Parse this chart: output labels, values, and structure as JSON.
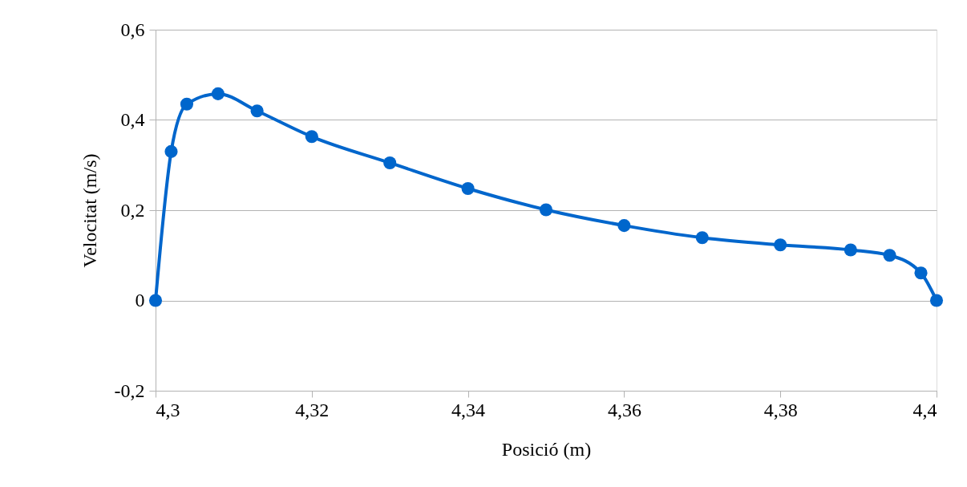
{
  "chart_data": {
    "type": "line",
    "xlabel": "Posició (m)",
    "ylabel": "Velocitat (m/s)",
    "x": [
      4.3,
      4.302,
      4.304,
      4.308,
      4.313,
      4.32,
      4.33,
      4.34,
      4.35,
      4.36,
      4.37,
      4.38,
      4.389,
      4.394,
      4.398,
      4.4
    ],
    "series": [
      {
        "color": "#0066cc",
        "values": [
          0,
          0.33,
          0.435,
          0.458,
          0.42,
          0.363,
          0.305,
          0.248,
          0.201,
          0.166,
          0.139,
          0.123,
          0.112,
          0.1,
          0.061,
          0
        ]
      }
    ],
    "xlim": [
      4.3,
      4.4
    ],
    "xticks": [
      {
        "value": 4.3,
        "label": "4,3"
      },
      {
        "value": 4.32,
        "label": "4,32"
      },
      {
        "value": 4.34,
        "label": "4,34"
      },
      {
        "value": 4.36,
        "label": "4,36"
      },
      {
        "value": 4.38,
        "label": "4,38"
      },
      {
        "value": 4.4,
        "label": "4,4"
      }
    ],
    "ylim": [
      -0.2,
      0.6
    ],
    "yticks": [
      {
        "value": -0.2,
        "label": "-0,2"
      },
      0,
      {
        "value": 0.2,
        "label": "0,2"
      },
      {
        "value": 0.4,
        "label": "0,4"
      },
      {
        "value": 0.6,
        "label": "0,6"
      }
    ],
    "grid": "y",
    "marker": "circle",
    "line_style": "solid"
  }
}
